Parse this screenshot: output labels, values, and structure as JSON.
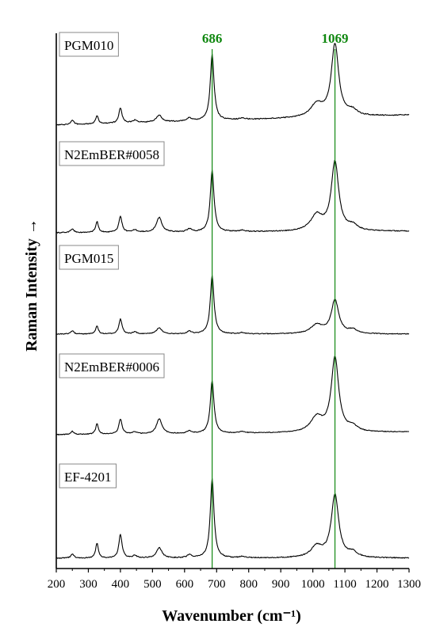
{
  "chart_data": {
    "type": "line",
    "title": "",
    "xlabel": "Wavenumber (cm⁻¹)",
    "ylabel": "Raman Intensity →",
    "xlim": [
      200,
      1300
    ],
    "x_ticks": [
      "200",
      "300",
      "400",
      "500",
      "600",
      "700",
      "800",
      "900",
      "1000",
      "1100",
      "1200",
      "1300"
    ],
    "y_ticks_shown": false,
    "grid": false,
    "stacked_offset": true,
    "reference_lines": [
      {
        "x": 686,
        "label": "686",
        "color": "#118811"
      },
      {
        "x": 1069,
        "label": "1069",
        "color": "#118811"
      }
    ],
    "common_peaks": [
      {
        "x": 250,
        "height": 0.05,
        "width": 6
      },
      {
        "x": 327,
        "height": 0.16,
        "width": 5
      },
      {
        "x": 400,
        "height": 0.23,
        "width": 6
      },
      {
        "x": 445,
        "height": 0.03,
        "width": 8
      },
      {
        "x": 521,
        "height": 0.12,
        "width": 10
      },
      {
        "x": 615,
        "height": 0.04,
        "width": 8
      },
      {
        "x": 686,
        "height": 1.0,
        "width": 7
      },
      {
        "x": 780,
        "height": 0.02,
        "width": 10
      },
      {
        "x": 1012,
        "height": 0.17,
        "width": 22
      },
      {
        "x": 1069,
        "height": 0.94,
        "width": 14
      },
      {
        "x": 1125,
        "height": 0.06,
        "width": 16
      }
    ],
    "series": [
      {
        "name": "PGM010",
        "color": "#000000",
        "baseline_rise": 0.12,
        "scale": [
          1,
          0.6,
          0.8,
          1,
          0.7,
          1,
          0.8,
          1,
          0.9,
          0.92,
          1
        ]
      },
      {
        "name": "N2EmBER#0058",
        "color": "#000000",
        "baseline_rise": 0.02,
        "scale": [
          1,
          0.9,
          0.9,
          1,
          1.6,
          1,
          0.8,
          1,
          1.2,
          0.95,
          1.1
        ]
      },
      {
        "name": "PGM015",
        "color": "#000000",
        "baseline_rise": 0.0,
        "scale": [
          1,
          0.8,
          1.0,
          1,
          0.8,
          1,
          0.9,
          1,
          0.8,
          0.55,
          1
        ]
      },
      {
        "name": "N2EmBER#0006",
        "color": "#000000",
        "baseline_rise": 0.04,
        "scale": [
          1,
          1.0,
          1.0,
          1,
          1.9,
          1,
          0.8,
          1,
          1.3,
          1.2,
          1.2
        ]
      },
      {
        "name": "EF-4201",
        "color": "#000000",
        "baseline_rise": 0.0,
        "scale": [
          1,
          1.2,
          1.3,
          1,
          1.1,
          1,
          1.0,
          1,
          0.8,
          0.84,
          1
        ]
      }
    ]
  }
}
